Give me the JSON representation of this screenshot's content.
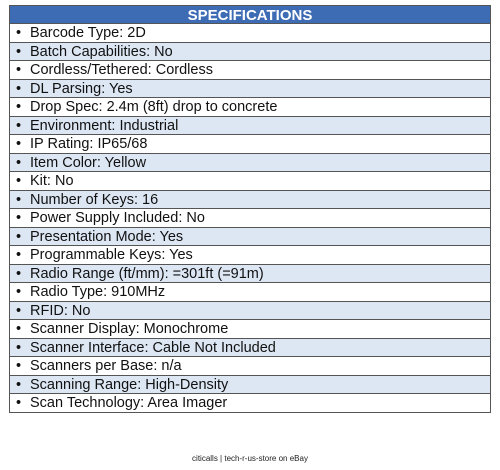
{
  "header": {
    "title": "SPECIFICATIONS"
  },
  "specs": {
    "items": [
      "Barcode Type: 2D",
      "Batch Capabilities: No",
      "Cordless/Tethered: Cordless",
      "DL Parsing: Yes",
      "Drop Spec: 2.4m (8ft) drop to concrete",
      "Environment: Industrial",
      "IP Rating: IP65/68",
      "Item Color: Yellow",
      "Kit: No",
      "Number of Keys: 16",
      "Power Supply Included: No",
      "Presentation Mode: Yes",
      "Programmable Keys: Yes",
      "Radio Range (ft/mm): =301ft (=91m)",
      "Radio Type: 910MHz",
      "RFID: No",
      "Scanner Display: Monochrome",
      "Scanner Interface: Cable Not Included",
      "Scanners per Base: n/a",
      "Scanning Range: High-Density",
      "Scan Technology: Area Imager"
    ]
  },
  "footer": {
    "text": "citicalls | tech-r-us-store on eBay"
  }
}
